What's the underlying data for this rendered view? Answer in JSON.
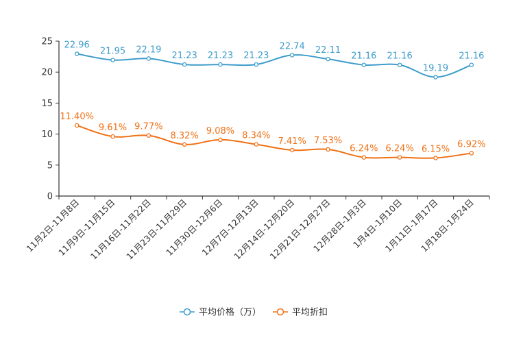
{
  "chart_data": {
    "type": "line",
    "title": "",
    "xlabel": "",
    "ylabel": "",
    "ylim": [
      0,
      25
    ],
    "yticks": [
      "0",
      "5",
      "10",
      "15",
      "20",
      "25"
    ],
    "categories": [
      "11月2日-11月8日",
      "11月9日-11月15日",
      "11月16日-11月22日",
      "11月23日-11月29日",
      "11月30日-12月6日",
      "12月7日-12月13日",
      "12月14日-12月20日",
      "12月21日-12月27日",
      "12月28日-1月3日",
      "1月4日-1月10日",
      "1月11日-1月17日",
      "1月18日-1月24日"
    ],
    "series": [
      {
        "name": "平均价格（万）",
        "color": "#3d9ccc",
        "values": [
          22.96,
          21.95,
          22.19,
          21.23,
          21.23,
          21.23,
          22.74,
          22.11,
          21.16,
          21.16,
          19.19,
          21.16
        ],
        "labels": [
          "22.96",
          "21.95",
          "22.19",
          "21.23",
          "21.23",
          "21.23",
          "22.74",
          "22.11",
          "21.16",
          "21.16",
          "19.19",
          "21.16"
        ]
      },
      {
        "name": "平均折扣",
        "color": "#f07014",
        "values": [
          11.4,
          9.61,
          9.77,
          8.32,
          9.08,
          8.34,
          7.41,
          7.53,
          6.24,
          6.24,
          6.15,
          6.92
        ],
        "labels": [
          "11.40%",
          "9.61%",
          "9.77%",
          "8.32%",
          "9.08%",
          "8.34%",
          "7.41%",
          "7.53%",
          "6.24%",
          "6.24%",
          "6.15%",
          "6.92%"
        ]
      }
    ],
    "grid": false,
    "legend_position": "bottom-center"
  }
}
